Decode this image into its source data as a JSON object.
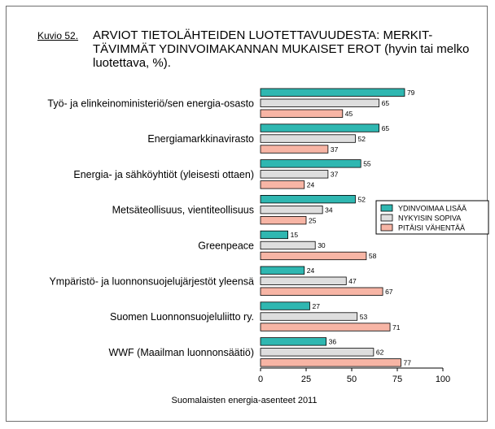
{
  "figure": {
    "label": "Kuvio 52.",
    "title": "ARVIOT TIETOLÄHTEIDEN LUOTETTAVUUDESTA: MERKIT-TÄVIMMÄT YDINVOIMAKANNAN MUKAISET EROT (hyvin tai melko luotettava, %).",
    "source": "Suomalaisten energia-asenteet 2011"
  },
  "chart_data": {
    "type": "bar",
    "orientation": "horizontal",
    "title": "ARVIOT TIETOLÄHTEIDEN LUOTETTAVUUDESTA: MERKIT-TÄVIMMÄT YDINVOIMAKANNAN MUKAISET EROT (hyvin tai melko luotettava, %).",
    "xlabel": "",
    "ylabel": "",
    "xlim": [
      0,
      100
    ],
    "xticks": [
      0,
      25,
      50,
      75,
      100
    ],
    "categories": [
      "Työ- ja elinkeinoministeriö/sen energia-osasto",
      "Energiamarkkinavirasto",
      "Energia- ja sähköyhtiöt (yleisesti ottaen)",
      "Metsäteollisuus, vientiteollisuus",
      "Greenpeace",
      "Ympäristö- ja luonnonsuojelujärjestöt yleensä",
      "Suomen Luonnonsuojeluliitto ry.",
      "WWF (Maailman luonnonsäätiö)"
    ],
    "series": [
      {
        "name": "YDINVOIMAA LISÄÄ",
        "color": "#2fb7b1",
        "values": [
          79,
          65,
          55,
          52,
          15,
          24,
          27,
          36
        ]
      },
      {
        "name": "NYKYISIN SOPIVA",
        "color": "#dedede",
        "values": [
          65,
          52,
          37,
          34,
          30,
          47,
          53,
          62
        ]
      },
      {
        "name": "PITÄISI VÄHENTÄÄ",
        "color": "#f7b5a5",
        "values": [
          45,
          37,
          24,
          25,
          58,
          67,
          71,
          77
        ]
      }
    ],
    "legend_position": "right",
    "source": "Suomalaisten energia-asenteet 2011"
  }
}
